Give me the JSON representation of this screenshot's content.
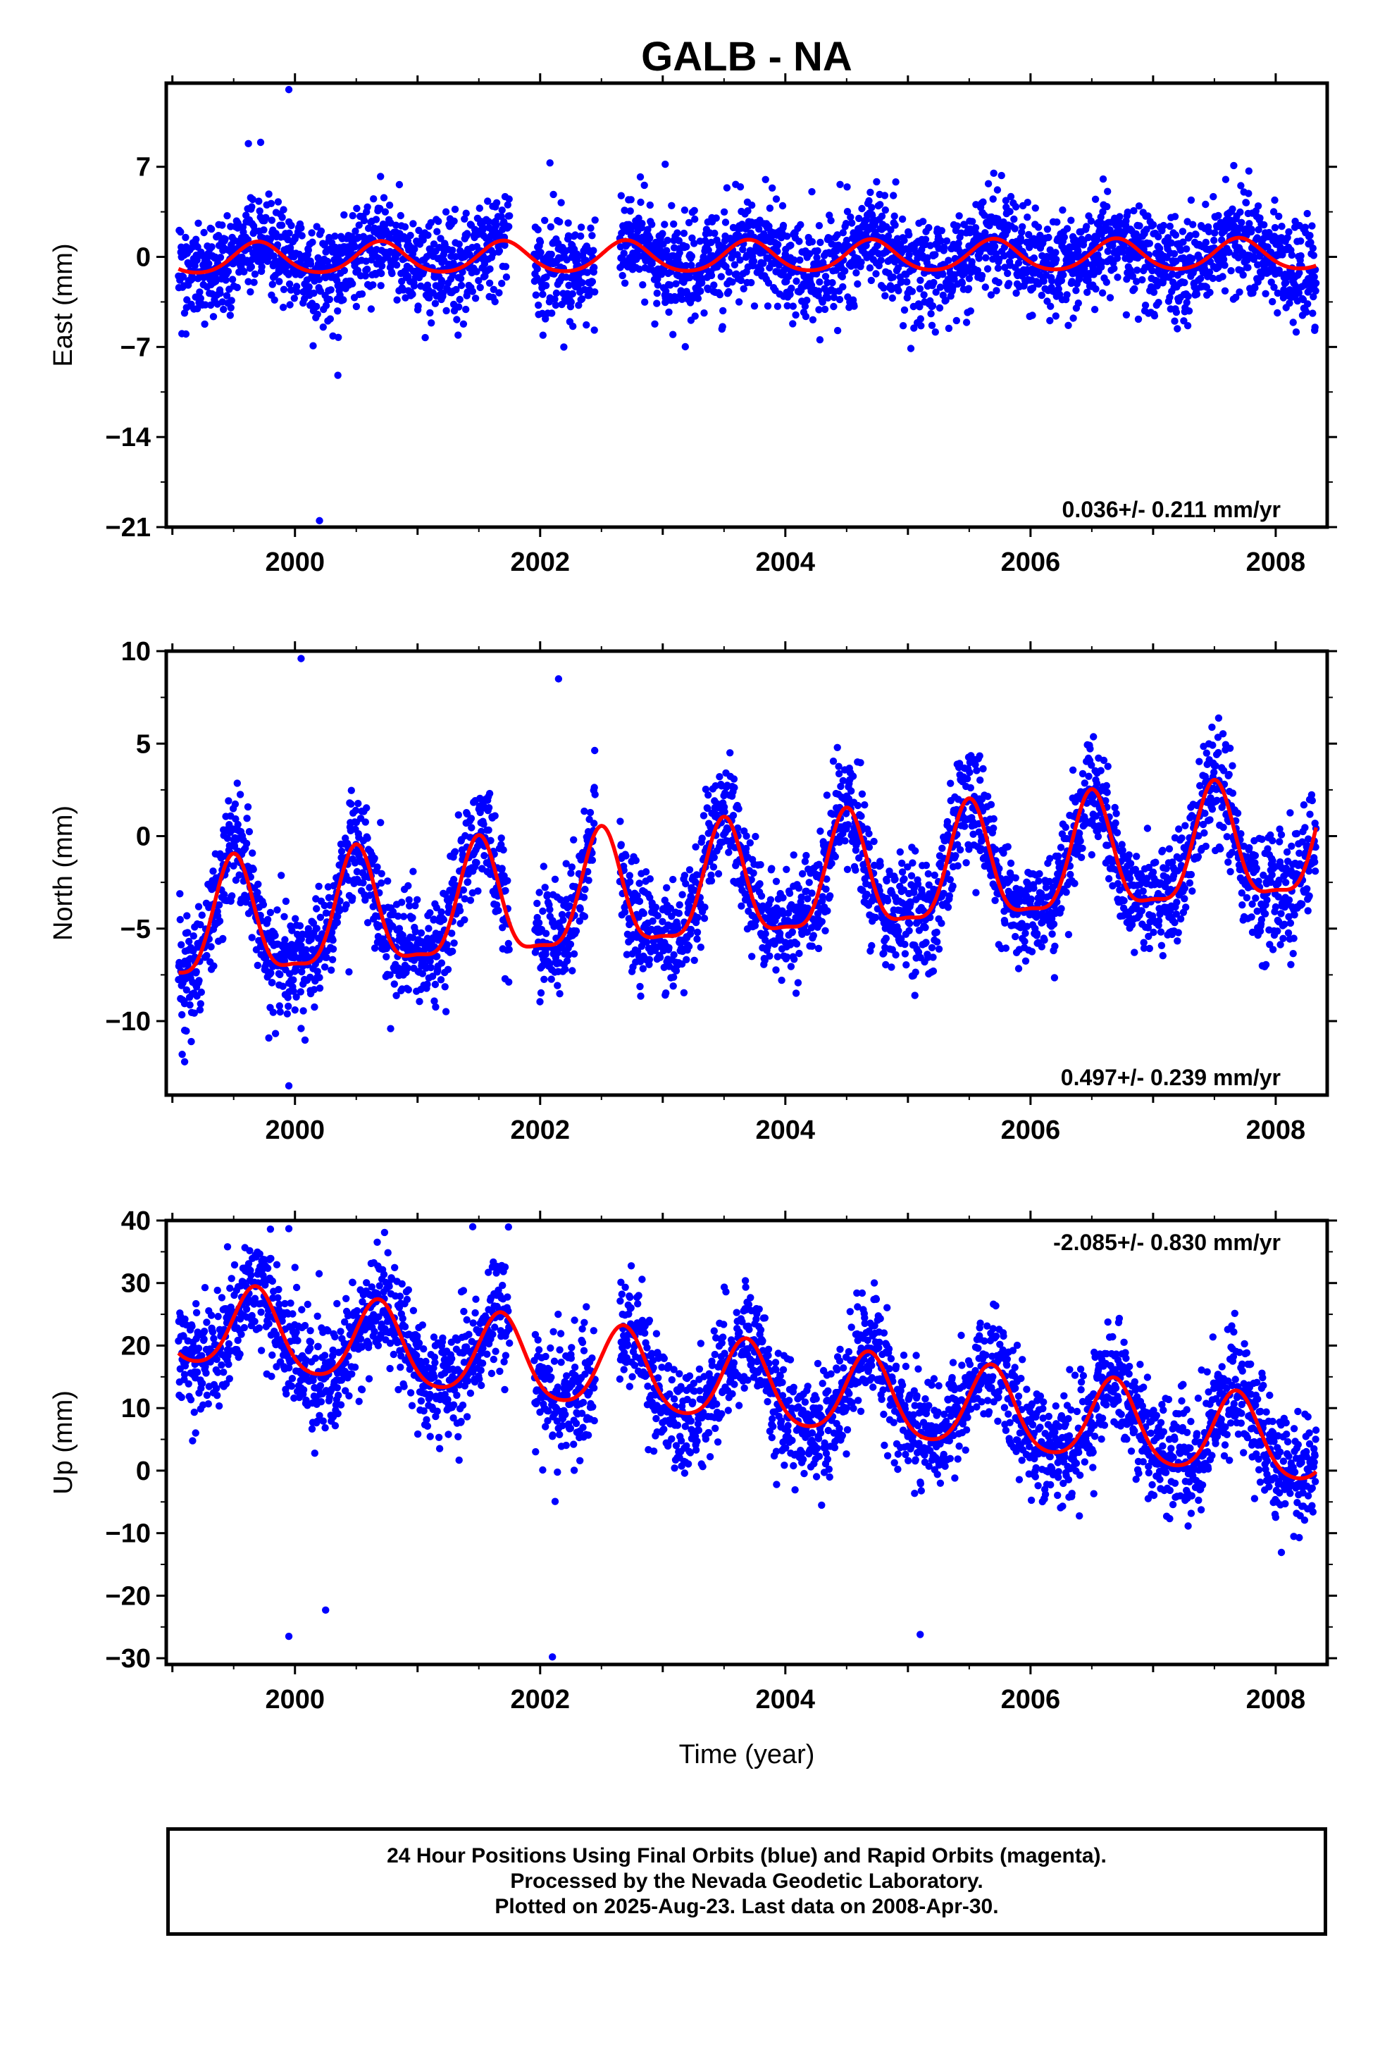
{
  "title": "GALB - NA",
  "colors": {
    "final_orbits": "#0000ff",
    "fit_curve": "#ff0000",
    "frame": "#000000"
  },
  "chart_data": [
    {
      "type": "scatter",
      "id": "east",
      "ylabel": "East (mm)",
      "xlabel": "",
      "xlim": [
        1998.95,
        2008.42
      ],
      "ylim": [
        -21,
        13.5
      ],
      "yticks": [
        7,
        0,
        -7,
        -14,
        -21
      ],
      "xticks": [
        2000,
        2002,
        2004,
        2006,
        2008
      ],
      "rate_text": "0.036+/- 0.211 mm/yr",
      "rate_position": "bottom-right",
      "data_start": 1999.05,
      "data_end": 2008.33,
      "gaps": [
        [
          2001.75,
          2001.95
        ],
        [
          2002.45,
          2002.65
        ]
      ],
      "scatter_sd": 1.9,
      "fit": {
        "offset": 0.0,
        "trend": 0.036,
        "annual_amp": 1.2,
        "annual_phase_peak": 0.7,
        "semiannual_amp": 0.15
      },
      "outliers": [
        [
          1999.95,
          13.0
        ],
        [
          1999.62,
          8.8
        ],
        [
          1999.72,
          8.9
        ],
        [
          2002.08,
          7.3
        ],
        [
          2000.35,
          -9.2
        ],
        [
          2000.2,
          -20.5
        ],
        [
          2003.02,
          7.2
        ],
        [
          2005.7,
          6.5
        ]
      ]
    },
    {
      "type": "scatter",
      "id": "north",
      "ylabel": "North (mm)",
      "xlabel": "",
      "xlim": [
        1998.95,
        2008.42
      ],
      "ylim": [
        -14,
        10
      ],
      "yticks": [
        10,
        5,
        0,
        -5,
        -10
      ],
      "xticks": [
        2000,
        2002,
        2004,
        2006,
        2008
      ],
      "rate_text": "0.497+/- 0.239 mm/yr",
      "rate_position": "bottom-right",
      "data_start": 1999.05,
      "data_end": 2008.33,
      "gaps": [
        [
          2001.75,
          2001.95
        ],
        [
          2002.45,
          2002.65
        ]
      ],
      "scatter_sd": 1.5,
      "fit": {
        "offset": -2.7,
        "trend": 0.497,
        "annual_amp": 3.1,
        "annual_phase_peak": 0.5,
        "semiannual_amp": 0.9
      },
      "outliers": [
        [
          2000.05,
          9.6
        ],
        [
          2002.15,
          8.5
        ],
        [
          1999.1,
          -10.5
        ],
        [
          1999.08,
          -11.8
        ],
        [
          1999.1,
          -12.2
        ],
        [
          1999.95,
          -13.5
        ],
        [
          2000.05,
          -10.4
        ],
        [
          2000.0,
          -9.4
        ]
      ]
    },
    {
      "type": "scatter",
      "id": "up",
      "ylabel": "Up (mm)",
      "xlabel": "Time (year)",
      "xlim": [
        1998.95,
        2008.42
      ],
      "ylim": [
        -31,
        40
      ],
      "yticks": [
        40,
        30,
        20,
        10,
        0,
        -10,
        -20,
        -30
      ],
      "xticks": [
        2000,
        2002,
        2004,
        2006,
        2008
      ],
      "rate_text": "-2.085+/- 0.830 mm/yr",
      "rate_position": "top-right",
      "data_start": 1999.05,
      "data_end": 2008.33,
      "gaps": [
        [
          2001.75,
          2001.95
        ],
        [
          2002.45,
          2002.65
        ]
      ],
      "scatter_sd": 4.6,
      "fit": {
        "offset": 13.0,
        "trend": -2.085,
        "annual_amp": 6.5,
        "annual_phase_peak": 0.68,
        "semiannual_amp": 1.0
      },
      "outliers": [
        [
          1999.95,
          38.7
        ],
        [
          1999.45,
          35.8
        ],
        [
          2001.45,
          39.0
        ],
        [
          2000.0,
          32.5
        ],
        [
          2000.25,
          -22.3
        ],
        [
          1999.95,
          -26.5
        ],
        [
          2002.1,
          -29.8
        ],
        [
          2005.1,
          -26.2
        ]
      ]
    }
  ],
  "caption": {
    "line1": "24 Hour Positions Using Final Orbits (blue) and Rapid Orbits (magenta).",
    "line2": "Processed by the Nevada Geodetic Laboratory.",
    "line3": "Plotted on 2025-Aug-23. Last data on 2008-Apr-30."
  }
}
